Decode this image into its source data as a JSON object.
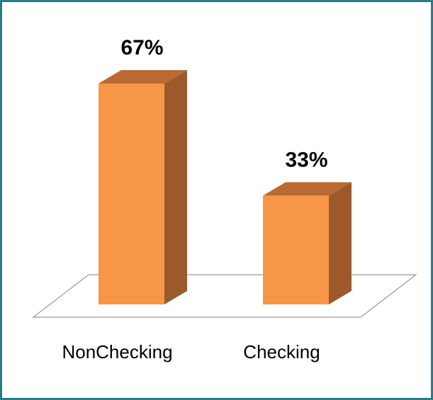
{
  "chart_data": {
    "type": "bar3d",
    "categories": [
      "NonChecking",
      "Checking"
    ],
    "values": [
      67,
      33
    ],
    "value_labels": [
      "67%",
      "33%"
    ],
    "color": "#f79646"
  }
}
